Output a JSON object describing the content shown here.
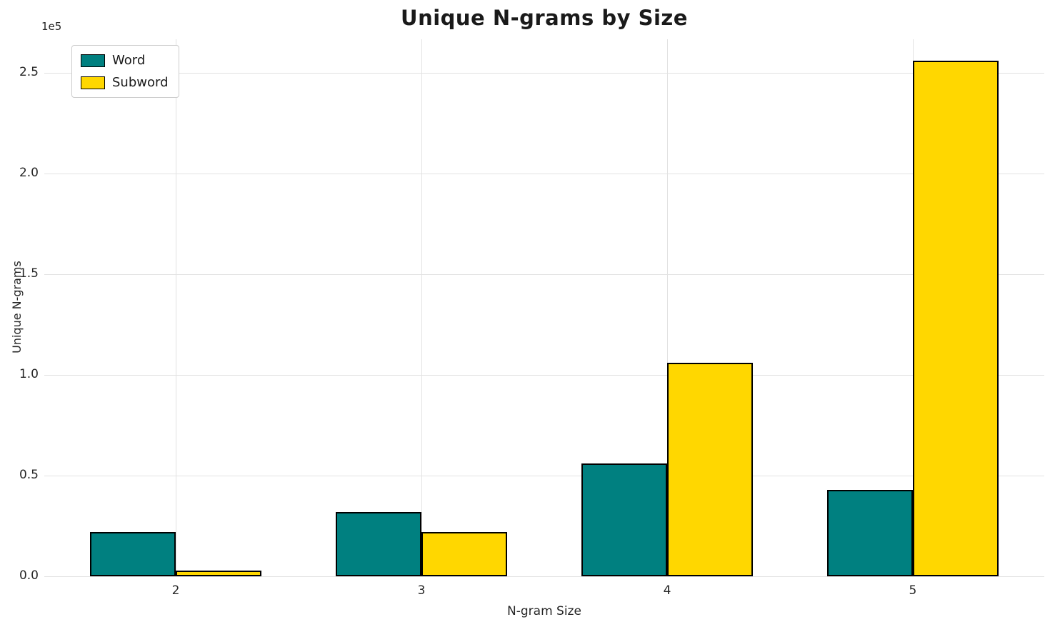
{
  "chart_data": {
    "type": "bar",
    "title": "Unique N-grams by Size",
    "xlabel": "N-gram Size",
    "ylabel": "Unique N-grams",
    "offset_label": "1e5",
    "categories": [
      2,
      3,
      4,
      5
    ],
    "series": [
      {
        "name": "Word",
        "color": "#008080",
        "values": [
          22000,
          32000,
          56000,
          43000
        ]
      },
      {
        "name": "Subword",
        "color": "#FFD700",
        "values": [
          3000,
          22000,
          106000,
          256000
        ]
      }
    ],
    "bar_width": 0.35,
    "bar_edge_color": "#000000",
    "xlim": [
      1.465,
      5.535
    ],
    "ylim": [
      0,
      266667
    ],
    "yticks": [
      0,
      50000,
      100000,
      150000,
      200000,
      250000
    ],
    "ytick_labels": [
      "0.0",
      "0.5",
      "1.0",
      "1.5",
      "2.0",
      "2.5"
    ],
    "grid": true,
    "legend_position": "upper left"
  }
}
